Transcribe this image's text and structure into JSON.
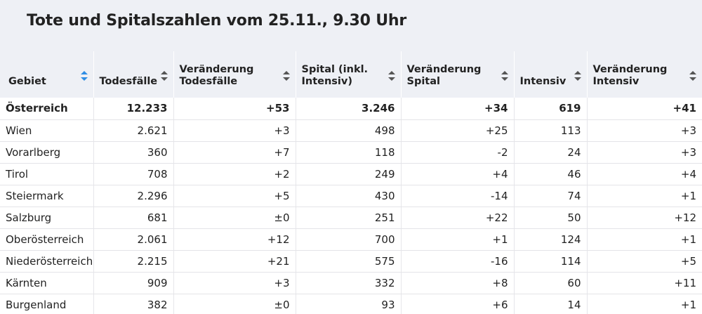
{
  "title": "Tote und Spitalszahlen vom 25.11., 9.30 Uhr",
  "chart_data": {
    "type": "table",
    "columns": [
      "Gebiet",
      "Todesfälle",
      "Veränderung Todesfälle",
      "Spital (inkl. Intensiv)",
      "Veränderung Spital",
      "Intensiv",
      "Veränderung Intensiv"
    ],
    "sorted_column": "Gebiet",
    "rows": [
      [
        "Österreich",
        "12.233",
        "+53",
        "3.246",
        "+34",
        "619",
        "+41"
      ],
      [
        "Wien",
        "2.621",
        "+3",
        "498",
        "+25",
        "113",
        "+3"
      ],
      [
        "Vorarlberg",
        "360",
        "+7",
        "118",
        "-2",
        "24",
        "+3"
      ],
      [
        "Tirol",
        "708",
        "+2",
        "249",
        "+4",
        "46",
        "+4"
      ],
      [
        "Steiermark",
        "2.296",
        "+5",
        "430",
        "-14",
        "74",
        "+1"
      ],
      [
        "Salzburg",
        "681",
        "±0",
        "251",
        "+22",
        "50",
        "+12"
      ],
      [
        "Oberösterreich",
        "2.061",
        "+12",
        "700",
        "+1",
        "124",
        "+1"
      ],
      [
        "Niederösterreich",
        "2.215",
        "+21",
        "575",
        "-16",
        "114",
        "+5"
      ],
      [
        "Kärnten",
        "909",
        "+3",
        "332",
        "+8",
        "60",
        "+11"
      ],
      [
        "Burgenland",
        "382",
        "±0",
        "93",
        "+6",
        "14",
        "+1"
      ]
    ]
  },
  "header": {
    "col0": "Gebiet",
    "col1": "Todesfälle",
    "col2a": "Veränderung",
    "col2b": "Todesfälle",
    "col3a": "Spital (inkl.",
    "col3b": "Intensiv)",
    "col4a": "Veränderung",
    "col4b": "Spital",
    "col5": "Intensiv",
    "col6a": "Veränderung",
    "col6b": "Intensiv"
  }
}
